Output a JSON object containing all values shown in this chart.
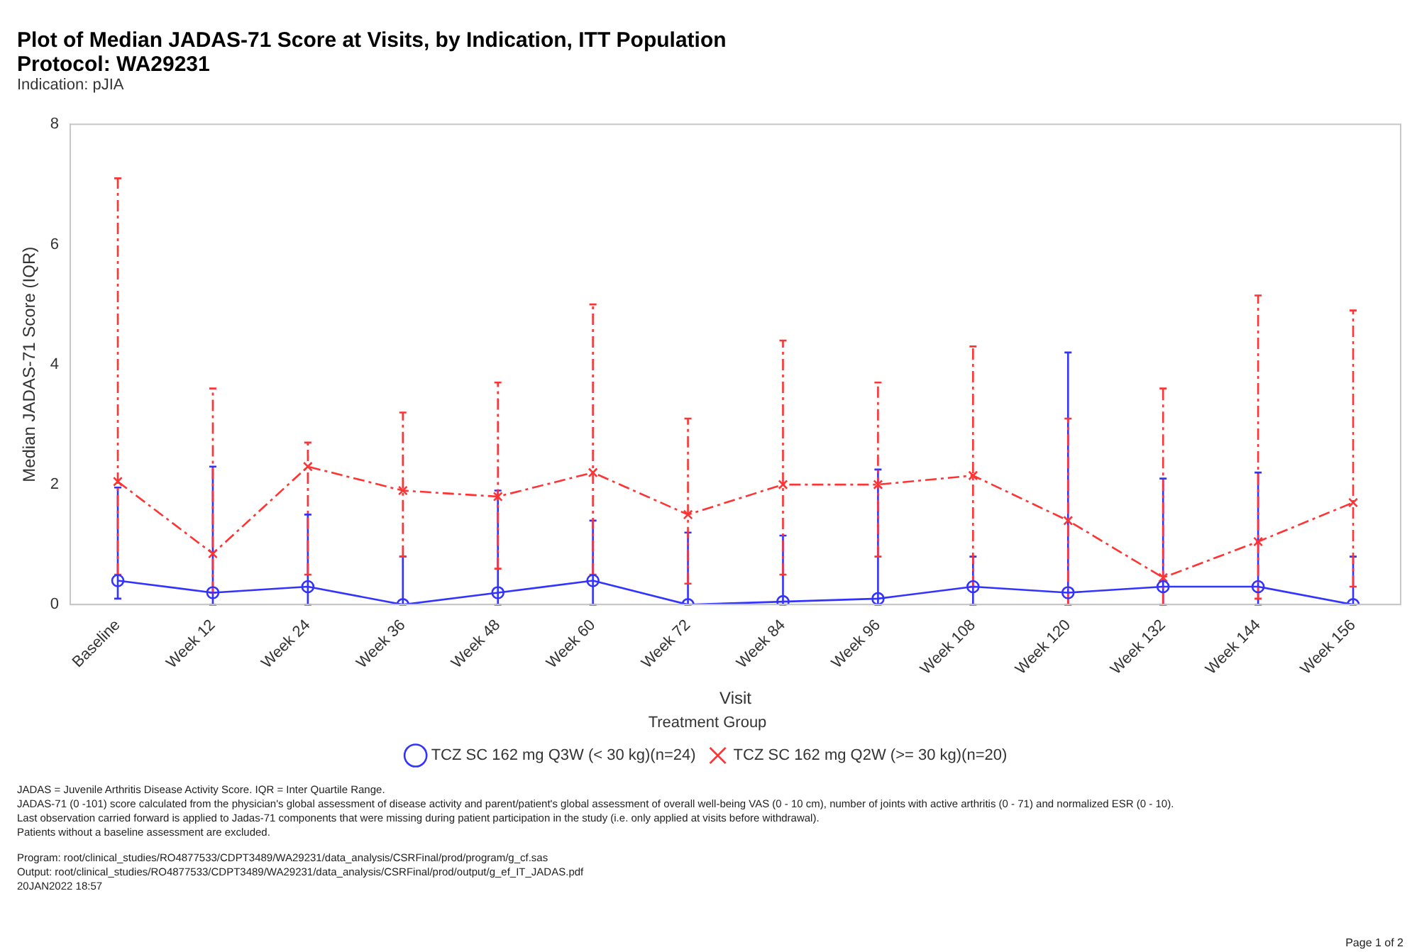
{
  "chart_data": {
    "type": "line",
    "title": "Plot of Median JADAS-71 Score at Visits, by Indication, ITT Population",
    "subtitle": "Protocol: WA29231",
    "xlabel": "Visit",
    "ylabel": "Median JADAS-71 Score (IQR)",
    "legend_title": "Treatment Group",
    "legend": "bottom",
    "grid": false,
    "categories": [
      "Baseline",
      "Week 12",
      "Week 24",
      "Week 36",
      "Week 48",
      "Week 60",
      "Week 72",
      "Week 84",
      "Week 96",
      "Week 108",
      "Week 120",
      "Week 132",
      "Week 144",
      "Week 156"
    ],
    "ylim": [
      0,
      8
    ],
    "yticks": [
      0,
      2,
      4,
      6,
      8
    ],
    "series": [
      {
        "name": "TCZ SC 162 mg Q3W (< 30 kg)(n=24)",
        "color": "#3333ff",
        "marker": "circle",
        "line_style": "solid",
        "values": [
          0.4,
          0.2,
          0.3,
          0,
          0.2,
          0.4,
          0,
          0.05,
          0.1,
          0.3,
          0.2,
          0.3,
          0.3,
          0
        ],
        "errors": [
          [
            0.1,
            1.95
          ],
          [
            0,
            2.3
          ],
          [
            0,
            1.5
          ],
          [
            0,
            0.8
          ],
          [
            0,
            1.9
          ],
          [
            0,
            1.4
          ],
          [
            0,
            1.2
          ],
          [
            0,
            1.15
          ],
          [
            0,
            2.25
          ],
          [
            0,
            0.8
          ],
          [
            0,
            4.2
          ],
          [
            0,
            2.1
          ],
          [
            0,
            2.2
          ],
          [
            0,
            0.8
          ]
        ]
      },
      {
        "name": "TCZ SC 162 mg Q2W (>= 30 kg)(n=20)",
        "color": "#ff3333",
        "marker": "cross",
        "line_style": "dashed",
        "values": [
          2.05,
          0.85,
          2.3,
          1.9,
          1.8,
          2.2,
          1.5,
          2.0,
          2.0,
          2.15,
          1.4,
          0.45,
          1.05,
          1.7
        ],
        "errors": [
          [
            0.5,
            7.1
          ],
          [
            0.2,
            3.6
          ],
          [
            0.5,
            2.7
          ],
          [
            0.8,
            3.2
          ],
          [
            0.6,
            3.7
          ],
          [
            0.5,
            5.0
          ],
          [
            0.35,
            3.1
          ],
          [
            0.5,
            4.4
          ],
          [
            0.8,
            3.7
          ],
          [
            0.3,
            4.3
          ],
          [
            0,
            3.1
          ],
          [
            0,
            3.6
          ],
          [
            0.1,
            5.15
          ],
          [
            0.3,
            4.9
          ]
        ]
      }
    ],
    "annotations": [
      "Indication: pJIA",
      "JADAS = Juvenile Arthritis Disease Activity Score. IQR = Inter Quartile Range.",
      "JADAS-71 (0 -101) score calculated from the physician's global assessment of disease activity and parent/patient's global assessment of overall well-being VAS (0 - 10 cm), number of joints with active arthritis (0 - 71) and normalized ESR (0 - 10).",
      "Last observation carried forward is applied to Jadas-71 components that were missing during patient participation in the study (i.e. only applied at visits before withdrawal).",
      "Patients without a baseline assessment are excluded.",
      "Program: root/clinical_studies/RO4877533/CDPT3489/WA29231/data_analysis/CSRFinal/prod/program/g_cf.sas",
      "Output: root/clinical_studies/RO4877533/CDPT3489/WA29231/data_analysis/CSRFinal/prod/output/g_ef_IT_JADAS.pdf",
      "20JAN2022 18:57",
      "Page 1 of 2"
    ]
  }
}
